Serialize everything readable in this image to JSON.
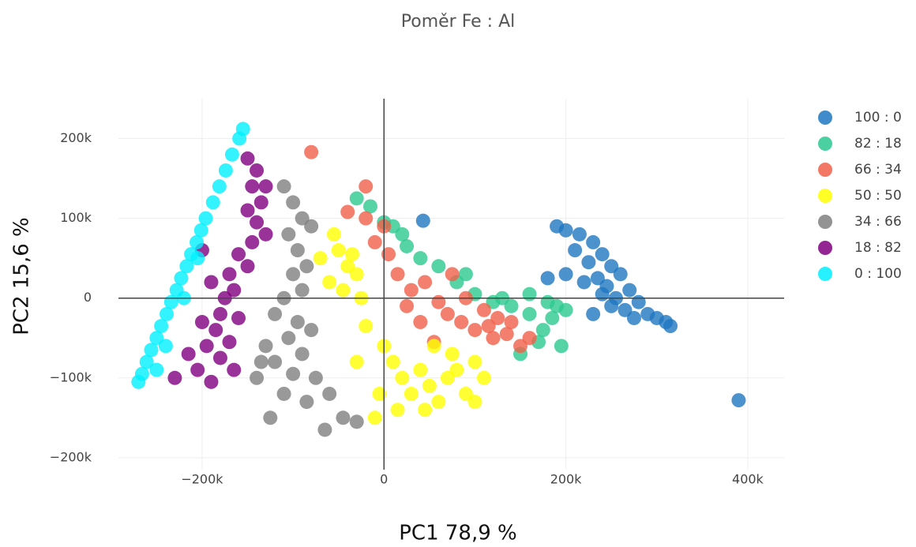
{
  "chart_data": {
    "type": "scatter",
    "title": "Poměr Fe : Al",
    "x_label": "PC1 78,9 %",
    "y_label": "PC2 15,6 %",
    "xlim": [
      -292000,
      440000
    ],
    "ylim": [
      -215000,
      250000
    ],
    "xticks": [
      {
        "value": -200000,
        "label": "−200k"
      },
      0,
      {
        "value": 200000,
        "label": "200k"
      },
      {
        "value": 400000,
        "label": "400k"
      }
    ],
    "yticks": [
      {
        "value": -200000,
        "label": "−200k"
      },
      {
        "value": -100000,
        "label": "−100k"
      },
      0,
      {
        "value": 100000,
        "label": "100k"
      },
      {
        "value": 200000,
        "label": "200k"
      }
    ],
    "grid": true,
    "legend": "right",
    "series": [
      {
        "name": "100 : 0",
        "color": "#1f77c0",
        "x": [
          190000,
          200000,
          215000,
          230000,
          210000,
          240000,
          225000,
          250000,
          260000,
          235000,
          245000,
          270000,
          255000,
          280000,
          265000,
          290000,
          300000,
          310000,
          315000,
          275000,
          220000,
          200000,
          180000,
          250000,
          240000,
          230000,
          390000,
          43000
        ],
        "y": [
          90000,
          85000,
          80000,
          70000,
          60000,
          55000,
          45000,
          40000,
          30000,
          25000,
          15000,
          10000,
          0,
          -5000,
          -15000,
          -20000,
          -25000,
          -30000,
          -35000,
          -25000,
          20000,
          30000,
          25000,
          -10000,
          5000,
          -20000,
          -128000,
          97000
        ]
      },
      {
        "name": "82 : 18",
        "color": "#2cc990",
        "x": [
          -30000,
          -15000,
          0,
          10000,
          20000,
          25000,
          40000,
          60000,
          80000,
          100000,
          120000,
          140000,
          160000,
          175000,
          185000,
          190000,
          170000,
          150000,
          195000,
          180000,
          130000,
          90000,
          200000,
          160000
        ],
        "y": [
          125000,
          115000,
          95000,
          90000,
          80000,
          65000,
          50000,
          40000,
          20000,
          5000,
          -5000,
          -10000,
          -20000,
          -40000,
          -25000,
          -10000,
          -55000,
          -70000,
          -60000,
          -5000,
          0,
          30000,
          -15000,
          5000
        ]
      },
      {
        "name": "66 : 34",
        "color": "#f0604a",
        "x": [
          -80000,
          -20000,
          -40000,
          -20000,
          0,
          -10000,
          5000,
          15000,
          30000,
          45000,
          60000,
          70000,
          85000,
          100000,
          115000,
          120000,
          135000,
          150000,
          160000,
          55000,
          40000,
          90000,
          110000,
          125000,
          140000,
          75000,
          25000
        ],
        "y": [
          183000,
          140000,
          108000,
          100000,
          90000,
          70000,
          55000,
          30000,
          10000,
          20000,
          -5000,
          -20000,
          -30000,
          -40000,
          -35000,
          -50000,
          -45000,
          -60000,
          -50000,
          -55000,
          -30000,
          0,
          -15000,
          -25000,
          -30000,
          30000,
          -10000
        ]
      },
      {
        "name": "50 : 50",
        "color": "#ffff00",
        "x": [
          -55000,
          -70000,
          -50000,
          -40000,
          -60000,
          -30000,
          -45000,
          -25000,
          -35000,
          -20000,
          0,
          10000,
          20000,
          30000,
          40000,
          50000,
          60000,
          70000,
          80000,
          90000,
          100000,
          110000,
          -30000,
          -5000,
          15000,
          45000,
          75000,
          100000,
          -10000,
          55000
        ],
        "y": [
          80000,
          50000,
          60000,
          40000,
          20000,
          30000,
          10000,
          0,
          55000,
          -35000,
          -60000,
          -80000,
          -100000,
          -120000,
          -90000,
          -110000,
          -130000,
          -100000,
          -90000,
          -120000,
          -80000,
          -100000,
          -80000,
          -120000,
          -140000,
          -140000,
          -70000,
          -130000,
          -150000,
          -60000
        ]
      },
      {
        "name": "34 : 66",
        "color": "#808080",
        "x": [
          -110000,
          -100000,
          -90000,
          -80000,
          -105000,
          -95000,
          -85000,
          -100000,
          -90000,
          -110000,
          -120000,
          -95000,
          -105000,
          -130000,
          -90000,
          -120000,
          -100000,
          -140000,
          -75000,
          -110000,
          -85000,
          -60000,
          -125000,
          -45000,
          -65000,
          -30000,
          -135000,
          -80000
        ],
        "y": [
          140000,
          120000,
          100000,
          90000,
          80000,
          60000,
          40000,
          30000,
          10000,
          0,
          -20000,
          -30000,
          -50000,
          -60000,
          -70000,
          -80000,
          -95000,
          -100000,
          -100000,
          -120000,
          -130000,
          -120000,
          -150000,
          -150000,
          -165000,
          -155000,
          -80000,
          -40000
        ]
      },
      {
        "name": "18 : 82",
        "color": "#800080",
        "x": [
          -150000,
          -140000,
          -145000,
          -135000,
          -150000,
          -140000,
          -130000,
          -145000,
          -160000,
          -150000,
          -170000,
          -165000,
          -175000,
          -180000,
          -160000,
          -185000,
          -170000,
          -195000,
          -180000,
          -165000,
          -205000,
          -190000,
          -230000,
          -215000,
          -200000,
          -190000,
          -200000,
          -130000
        ],
        "y": [
          175000,
          160000,
          140000,
          120000,
          110000,
          95000,
          80000,
          70000,
          55000,
          40000,
          30000,
          10000,
          0,
          -20000,
          -25000,
          -40000,
          -55000,
          -60000,
          -75000,
          -90000,
          -90000,
          -105000,
          -100000,
          -70000,
          -30000,
          20000,
          60000,
          140000
        ]
      },
      {
        "name": "0 : 100",
        "color": "#00f0ff",
        "x": [
          -155000,
          -159000,
          -167000,
          -174000,
          -181000,
          -188000,
          -196000,
          -201000,
          -206000,
          -212000,
          -217000,
          -223000,
          -228000,
          -234000,
          -239000,
          -245000,
          -250000,
          -256000,
          -261000,
          -266000,
          -270000,
          -250000,
          -240000,
          -220000,
          -205000
        ],
        "y": [
          212000,
          200000,
          180000,
          160000,
          140000,
          120000,
          100000,
          85000,
          70000,
          55000,
          40000,
          25000,
          10000,
          -5000,
          -20000,
          -35000,
          -50000,
          -65000,
          -80000,
          -95000,
          -105000,
          -90000,
          -60000,
          0,
          50000
        ]
      }
    ]
  }
}
